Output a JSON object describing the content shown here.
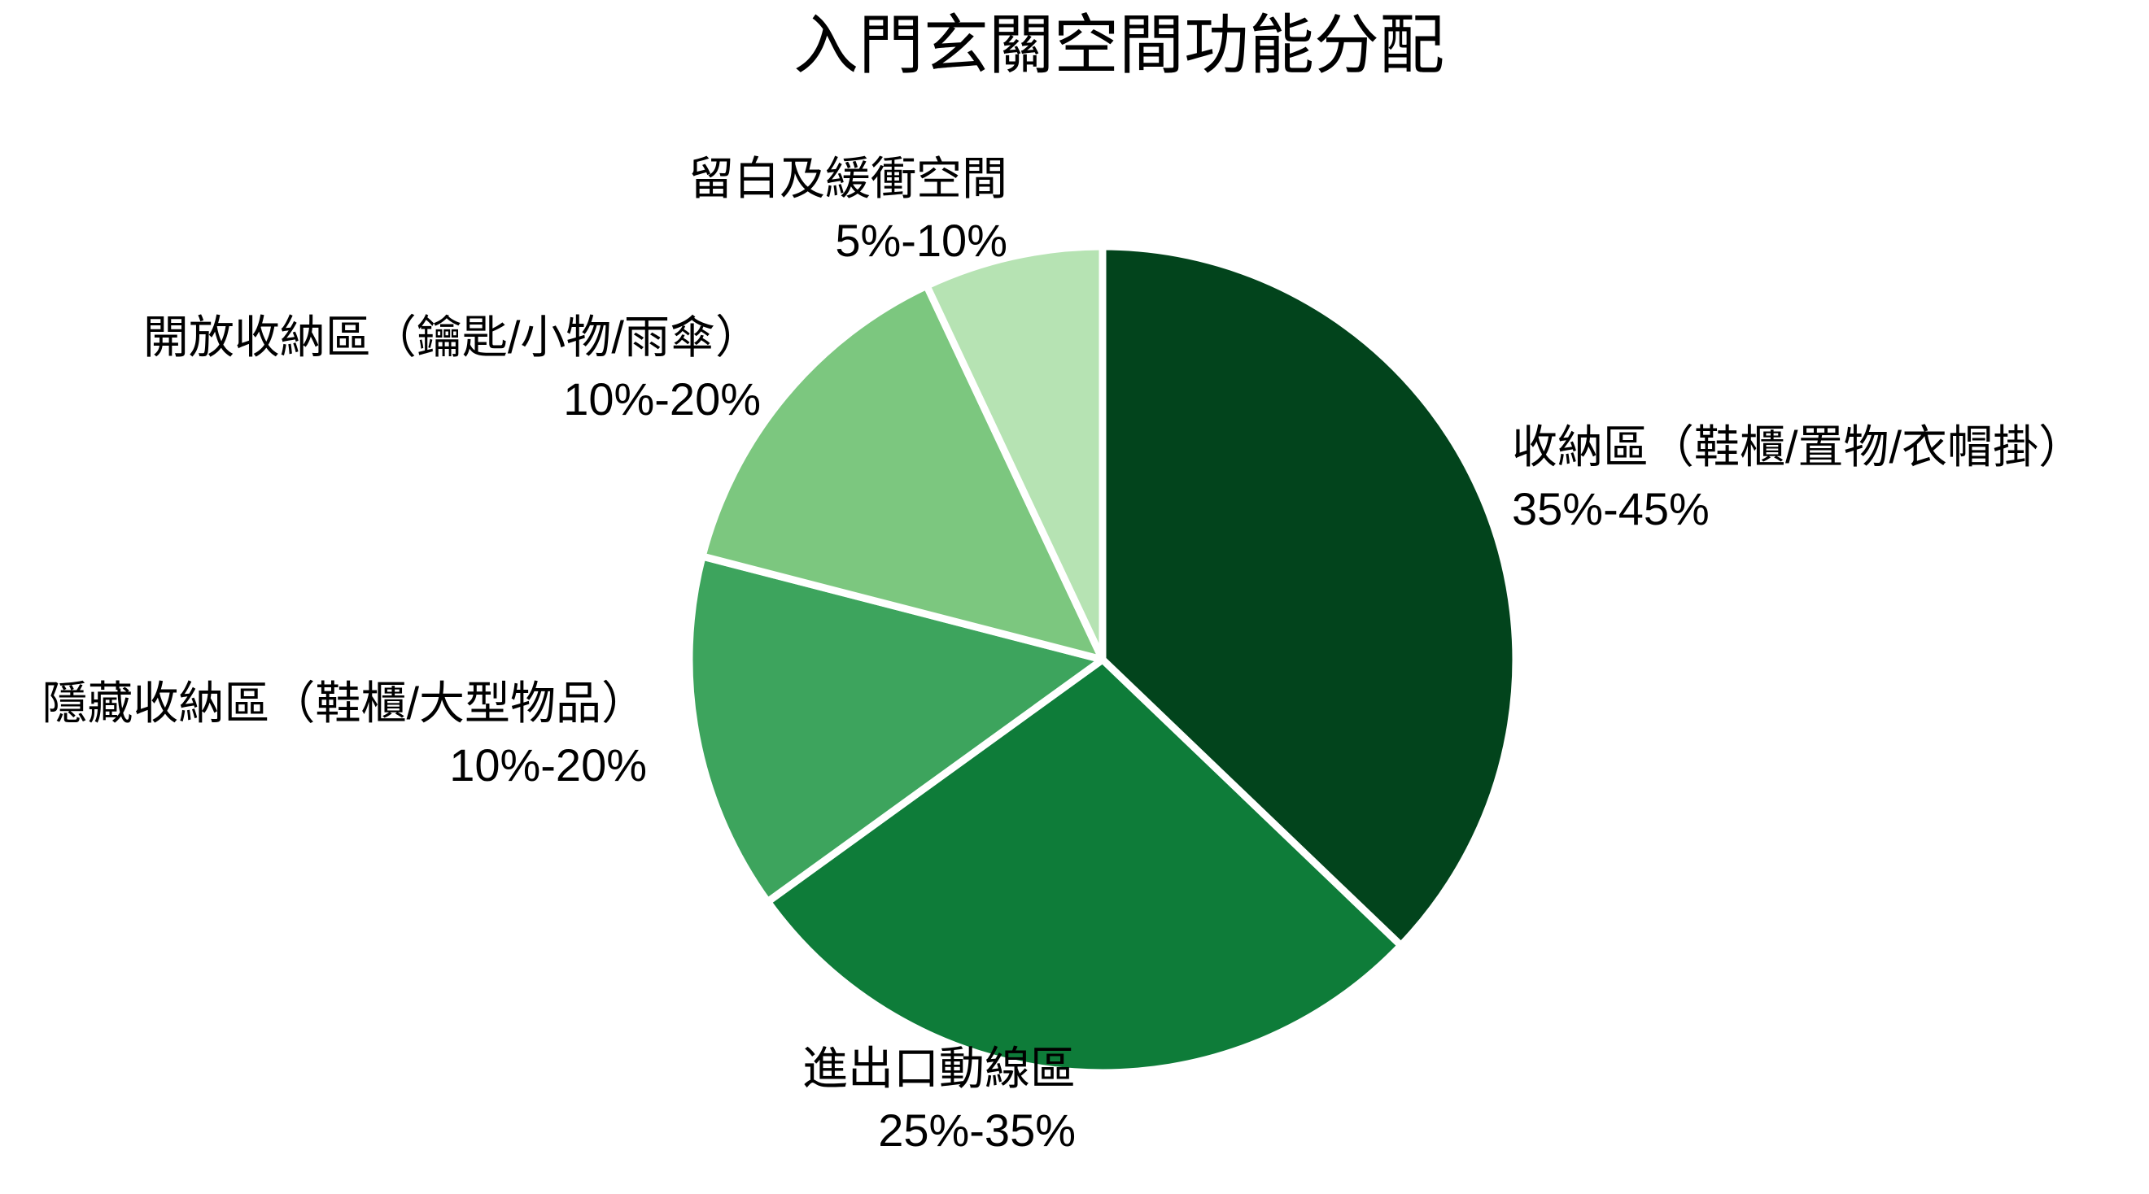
{
  "page": {
    "background": "#ffffff",
    "text_color": "#000000"
  },
  "chart_data": {
    "type": "pie",
    "title": "入門玄關空間功能分配",
    "legend_position": "none",
    "start_angle": "12-oclock-clockwise",
    "stroke_color": "#ffffff",
    "slices": [
      {
        "label": "收納區（鞋櫃/置物/衣帽掛）",
        "range": "35%-45%",
        "value": 37.2,
        "color": "#02441c"
      },
      {
        "label": "進出口動線區",
        "range": "25%-35%",
        "value": 27.9,
        "color": "#0e7c39"
      },
      {
        "label": "隱藏收納區（鞋櫃/大型物品）",
        "range": "10%-20%",
        "value": 14.0,
        "color": "#3da45d"
      },
      {
        "label": "開放收納區（鑰匙/小物/雨傘）",
        "range": "10%-20%",
        "value": 14.0,
        "color": "#7cc77f"
      },
      {
        "label": "留白及緩衝空間",
        "range": "5%-10%",
        "value": 7.0,
        "color": "#b6e3b3"
      }
    ]
  }
}
